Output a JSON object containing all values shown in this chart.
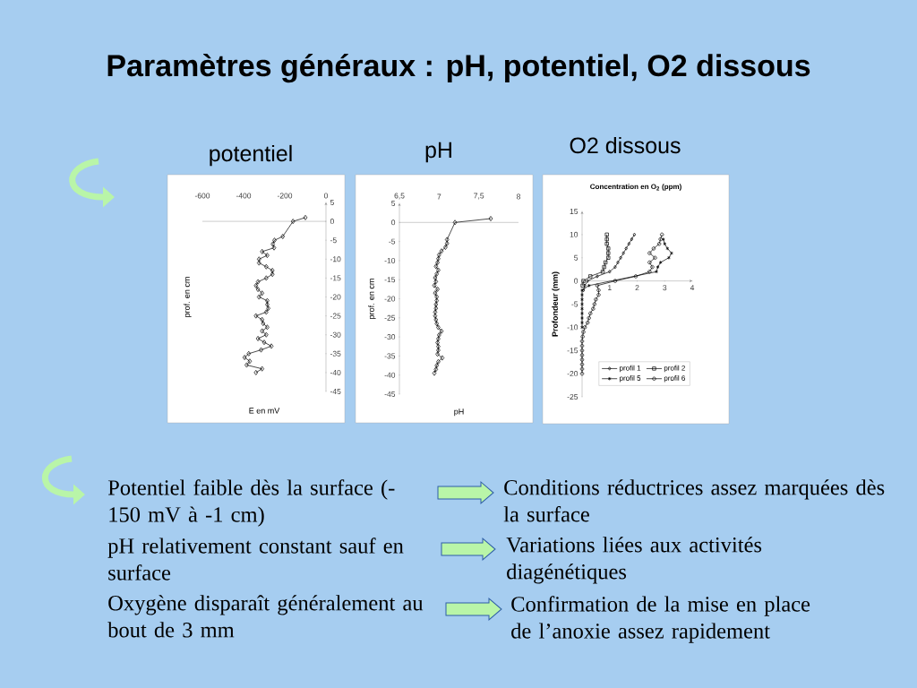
{
  "chart_data": [
    {
      "type": "other",
      "title": "Paramètres généraux : pH, potentiel, O2 dissous",
      "annotations": [
        "Potentiel faible dès la surface (-150 mV à -1 cm)",
        "Conditions réductrices assez marquées dès la surface",
        "pH relativement constant sauf en surface",
        "Variations liées aux activités diagénétiques",
        "Oxygène disparaît généralement au bout de 3 mm",
        "Confirmation de la mise en place de l’anoxie assez rapidement"
      ]
    },
    {
      "type": "line",
      "title": "potentiel",
      "xlabel": "E en mV",
      "ylabel": "prof. en cm",
      "marker": "diamond",
      "xlim": [
        -600,
        0
      ],
      "xticks": [
        -600,
        -400,
        -200,
        0
      ],
      "ylim": [
        -45,
        5
      ],
      "yticks": [
        5,
        0,
        -5,
        -10,
        -15,
        -20,
        -25,
        -30,
        -35,
        -40,
        -45
      ],
      "series": [
        {
          "color": "#000000",
          "x": [
            -100,
            -160,
            -210,
            -250,
            -258,
            -252,
            -310,
            -285,
            -325,
            -325,
            -290,
            -260,
            -260,
            -290,
            -330,
            -340,
            -330,
            -310,
            -325,
            -285,
            -285,
            -280,
            -290,
            -340,
            -310,
            -305,
            -285,
            -310,
            -290,
            -330,
            -300,
            -265,
            -315,
            -375,
            -395,
            -370,
            -385,
            -310,
            -340
          ],
          "values": [
            1,
            0,
            -4,
            -5,
            -6,
            -7,
            -8,
            -9,
            -10,
            -11,
            -12,
            -13,
            -14,
            -15,
            -16,
            -17,
            -18,
            -19,
            -20,
            -21,
            -22,
            -23,
            -24,
            -25,
            -26,
            -27,
            -28,
            -29,
            -30,
            -31,
            -32,
            -33,
            -34,
            -35,
            -36,
            -37,
            -38,
            -39,
            -40
          ]
        }
      ]
    },
    {
      "type": "line",
      "title": "pH",
      "xlabel": "pH",
      "ylabel": "prof. en cm",
      "marker": "diamond",
      "xlim": [
        6.5,
        8
      ],
      "xticks": [
        {
          "value": 6.5,
          "label": "6,5"
        },
        7,
        {
          "value": 7.5,
          "label": "7,5"
        },
        8
      ],
      "ylim": [
        -45,
        5
      ],
      "yticks": [
        5,
        0,
        -5,
        -10,
        -15,
        -20,
        -25,
        -30,
        -35,
        -40,
        -45
      ],
      "series": [
        {
          "color": "#000000",
          "x": [
            7.65,
            7.2,
            7.1,
            7.1,
            7.08,
            7.03,
            7.0,
            6.99,
            6.98,
            6.96,
            6.99,
            6.97,
            6.95,
            6.96,
            6.94,
            6.98,
            6.95,
            6.97,
            6.97,
            6.96,
            6.96,
            6.95,
            6.95,
            6.96,
            6.97,
            6.99,
            7.03,
            7.0,
            6.99,
            6.98,
            6.99,
            6.99,
            6.98,
            7.04,
            6.99,
            6.97,
            6.96,
            6.94
          ],
          "values": [
            1,
            0,
            -4.5,
            -5.5,
            -6.5,
            -7.5,
            -8.5,
            -9.5,
            -10.5,
            -11.5,
            -12.5,
            -13.5,
            -14.5,
            -15.5,
            -16.5,
            -17.5,
            -18.5,
            -19.5,
            -20.5,
            -21.5,
            -22.5,
            -23.5,
            -24.5,
            -25.5,
            -26.5,
            -27.5,
            -28.5,
            -29.5,
            -30.5,
            -31.5,
            -32.5,
            -33.5,
            -34.5,
            -35.5,
            -36.5,
            -37.5,
            -38.5,
            -39.5
          ]
        }
      ]
    },
    {
      "type": "line",
      "title": "O2 dissous",
      "subtitle": "Concentration en O$_{2}$ (ppm)",
      "ylabel": "Profondeur (mm)",
      "legend": "bottom right",
      "xlim": [
        0,
        4
      ],
      "xticks": [
        1,
        2,
        3,
        4
      ],
      "ylim": [
        -25,
        15
      ],
      "yticks": [
        15,
        10,
        5,
        0,
        -5,
        -10,
        -15,
        -20,
        -25
      ],
      "series": [
        {
          "name": "profil 1",
          "color": "#000000",
          "marker": "diamond",
          "x": [
            1.9,
            1.8,
            1.7,
            1.6,
            1.5,
            1.4,
            1.3,
            1.2,
            1.0,
            0.55,
            0.2,
            0.1,
            0.05
          ],
          "values": [
            10,
            9,
            8,
            7,
            6,
            5,
            4,
            3,
            2,
            1,
            0,
            -1,
            -2
          ]
        },
        {
          "name": "profil 2",
          "color": "#000000",
          "marker": "square",
          "x": [
            0.9,
            0.9,
            0.9,
            0.95,
            0.95,
            0.95,
            0.85,
            0.8,
            0.75,
            0.3,
            0.05,
            0.02
          ],
          "values": [
            10,
            9,
            8,
            7,
            6,
            5,
            4,
            3,
            2,
            1,
            0,
            -1
          ]
        },
        {
          "name": "profil 5",
          "color": "#000000",
          "marker": "cross",
          "x": [
            2.95,
            3.0,
            3.1,
            3.25,
            3.15,
            2.85,
            2.75,
            2.7,
            0.25,
            0,
            0,
            0,
            0,
            0,
            0,
            0,
            0,
            0
          ],
          "values": [
            9,
            8,
            7,
            6,
            5,
            4,
            3,
            2,
            -1,
            -2,
            -3,
            -4,
            -5,
            -6,
            -7,
            -8,
            -9,
            -10
          ]
        },
        {
          "name": "profil 6",
          "color": "#000000",
          "marker": "circle",
          "x": [
            2.9,
            2.85,
            2.8,
            2.6,
            2.45,
            2.65,
            2.45,
            2.55,
            2.45,
            1.95,
            1.2,
            0.55,
            0.6,
            0.6,
            0.5,
            0.45,
            0.4,
            0.3,
            0.25,
            0.2,
            0.1,
            0.05,
            0.02,
            0,
            0,
            0,
            0,
            0,
            0,
            0,
            0
          ],
          "values": [
            10,
            9,
            8,
            7,
            6,
            5,
            4,
            3,
            2,
            1,
            0,
            -1,
            -2,
            -3,
            -4,
            -5,
            -6,
            -7,
            -8,
            -9,
            -10,
            -11,
            -12,
            -13,
            -14,
            -15,
            -16,
            -17,
            -18,
            -19,
            -20
          ]
        }
      ]
    }
  ]
}
